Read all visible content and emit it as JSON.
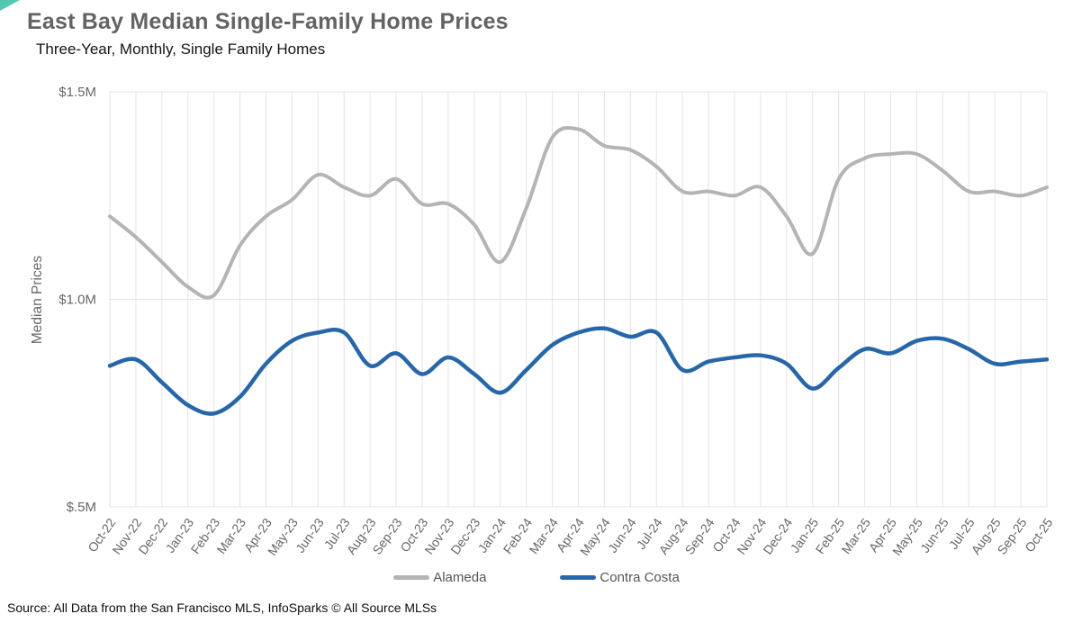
{
  "page": {
    "title": "East Bay Median Single-Family Home Prices",
    "subtitle": "Three-Year, Monthly, Single Family Homes",
    "source_note": "Source: All Data from the San Francisco MLS, InfoSparks © All Source MLSs"
  },
  "decoration": {
    "corner_accent_color": "#53c8b1"
  },
  "legend": {
    "items": [
      {
        "label": "Alameda",
        "color": "#b4b4b4"
      },
      {
        "label": "Contra Costa",
        "color": "#2767a9"
      }
    ]
  },
  "chart_data": {
    "type": "line",
    "title": "East Bay Median Single-Family Home Prices",
    "subtitle": "Three-Year, Monthly, Single Family Homes",
    "xlabel": "",
    "ylabel": "Median Prices",
    "unit": "USD millions",
    "ylim": [
      0.5,
      1.5
    ],
    "y_ticks": [
      {
        "label": "$1.5M",
        "value": 1.5
      },
      {
        "label": "$1.0M",
        "value": 1.0
      },
      {
        "label": "$.5M",
        "value": 0.5
      }
    ],
    "grid": "vertical line at every month, horizontal line at each y tick",
    "legend_position": "bottom-center",
    "categories": [
      "Oct-22",
      "Nov-22",
      "Dec-22",
      "Jan-23",
      "Feb-23",
      "Mar-23",
      "Apr-23",
      "May-23",
      "Jun-23",
      "Jul-23",
      "Aug-23",
      "Sep-23",
      "Oct-23",
      "Nov-23",
      "Dec-23",
      "Jan-24",
      "Feb-24",
      "Mar-24",
      "Apr-24",
      "May-24",
      "Jun-24",
      "Jul-24",
      "Aug-24",
      "Sep-24",
      "Oct-24",
      "Nov-24",
      "Dec-24",
      "Jan-25",
      "Feb-25",
      "Mar-25",
      "Apr-25",
      "May-25",
      "Jun-25",
      "Jul-25",
      "Aug-25",
      "Sep-25",
      "Oct-25"
    ],
    "series": [
      {
        "name": "Alameda",
        "color": "#b4b4b4",
        "stroke_width": 4,
        "values": [
          1.2,
          1.15,
          1.09,
          1.03,
          1.01,
          1.13,
          1.2,
          1.24,
          1.3,
          1.27,
          1.25,
          1.29,
          1.23,
          1.23,
          1.18,
          1.09,
          1.22,
          1.39,
          1.41,
          1.37,
          1.36,
          1.32,
          1.26,
          1.26,
          1.25,
          1.27,
          1.2,
          1.11,
          1.29,
          1.34,
          1.35,
          1.35,
          1.31,
          1.26,
          1.26,
          1.25,
          1.27
        ]
      },
      {
        "name": "Contra Costa",
        "color": "#2767a9",
        "stroke_width": 4.5,
        "values": [
          0.84,
          0.855,
          0.8,
          0.745,
          0.725,
          0.765,
          0.845,
          0.9,
          0.92,
          0.92,
          0.84,
          0.87,
          0.82,
          0.86,
          0.82,
          0.775,
          0.83,
          0.89,
          0.92,
          0.93,
          0.91,
          0.92,
          0.83,
          0.85,
          0.86,
          0.865,
          0.845,
          0.785,
          0.835,
          0.88,
          0.87,
          0.9,
          0.905,
          0.88,
          0.845,
          0.85,
          0.855
        ]
      }
    ]
  }
}
